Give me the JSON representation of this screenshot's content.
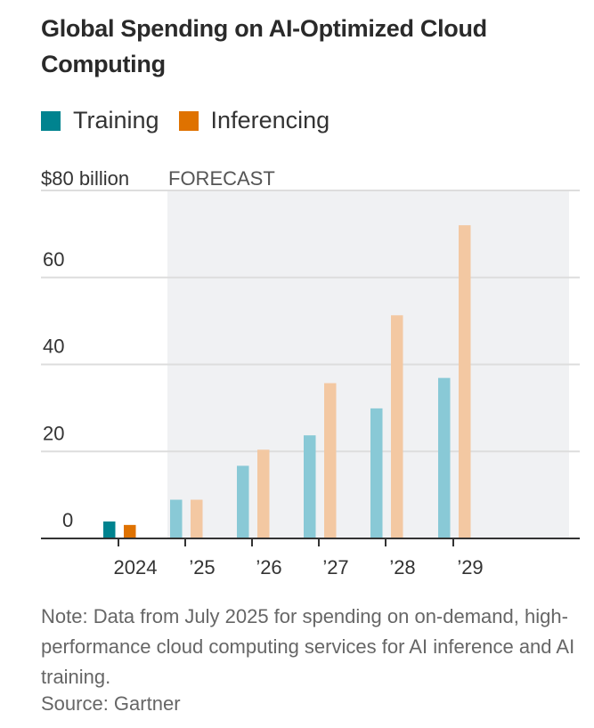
{
  "chart_data": {
    "type": "bar",
    "title": "Global Spending on AI-Optimized Cloud Computing",
    "categories": [
      "2024",
      "’25",
      "’26",
      "’27",
      "’28",
      "’29"
    ],
    "series": [
      {
        "name": "Training",
        "color": "#00838f",
        "forecast_color": "#89c9d6",
        "values": [
          3.9,
          8.9,
          16.7,
          23.7,
          29.9,
          36.9
        ]
      },
      {
        "name": "Inferencing",
        "color": "#df7200",
        "forecast_color": "#f3c8a2",
        "values": [
          3.1,
          8.9,
          20.4,
          35.7,
          51.3,
          72
        ]
      }
    ],
    "y_ticks": [
      {
        "v": 0,
        "label": "0"
      },
      {
        "v": 20,
        "label": "20"
      },
      {
        "v": 40,
        "label": "40"
      },
      {
        "v": 60,
        "label": "60"
      },
      {
        "v": 80,
        "label": "$80 billion"
      }
    ],
    "ylim": [
      0,
      80
    ],
    "forecast_label": "FORECAST",
    "forecast_start_index": 1,
    "grid": true,
    "legend_position": "top-left"
  },
  "note": "Note: Data from July 2025 for spending on on-demand, high-performance cloud computing services for AI inference and AI training.",
  "source": "Source: Gartner"
}
